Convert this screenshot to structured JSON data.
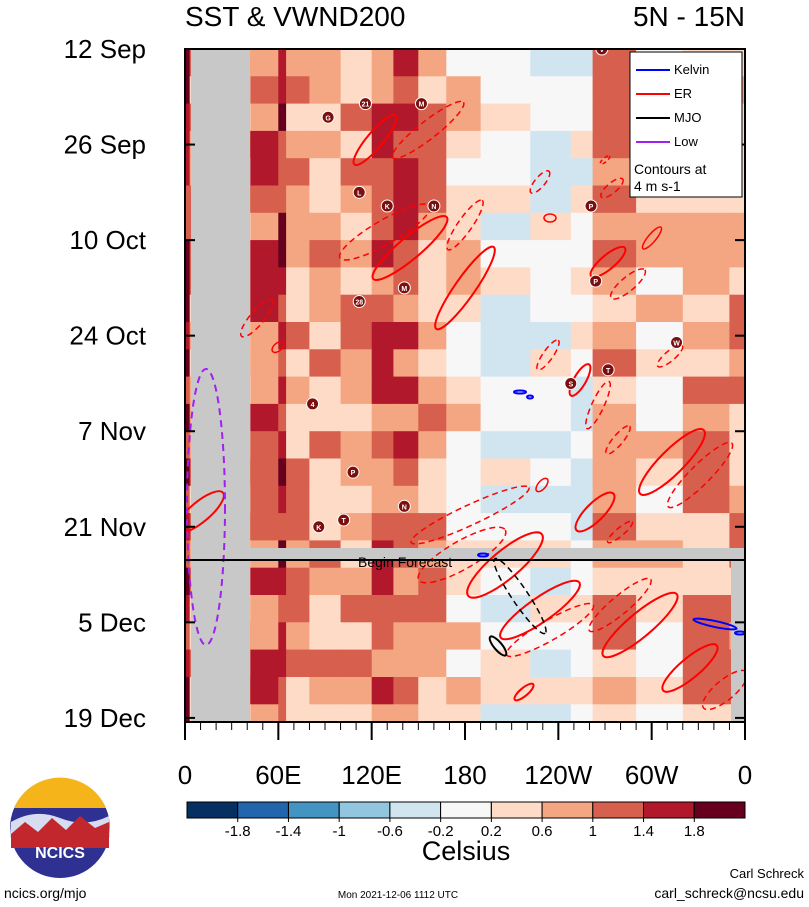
{
  "chart_data": {
    "type": "heatmap",
    "title": "SST & VWND200",
    "region": "5N - 15N",
    "x_ticks": [
      "0",
      "60E",
      "120E",
      "180",
      "120W",
      "60W",
      "0"
    ],
    "y_ticks": [
      "12 Sep",
      "26 Sep",
      "10 Oct",
      "24 Oct",
      "7 Nov",
      "21 Nov",
      "5 Dec",
      "19 Dec"
    ],
    "forecast_label": "Begin Forecast",
    "colorbar": {
      "label": "Celsius",
      "ticks": [
        "-1.8",
        "-1.4",
        "-1",
        "-0.6",
        "-0.2",
        "0.2",
        "0.6",
        "1",
        "1.4",
        "1.8"
      ],
      "colors": [
        "#053061",
        "#2166ac",
        "#4393c3",
        "#92c5de",
        "#d1e5f0",
        "#f7f7f7",
        "#fddbc7",
        "#f4a582",
        "#d6604d",
        "#b2182b",
        "#67001f"
      ]
    },
    "legend": {
      "placement": "top-right",
      "entries": [
        {
          "name": "Kelvin",
          "color": "#0000ff"
        },
        {
          "name": "ER",
          "color": "#ff0000"
        },
        {
          "name": "MJO",
          "color": "#000000"
        },
        {
          "name": "Low",
          "color": "#a020f0"
        }
      ],
      "note_line1": "Contours at",
      "note_line2": "4 m s-1"
    },
    "storm_markers": [
      {
        "label": "G",
        "lon": 92,
        "day": 10
      },
      {
        "label": "21",
        "lon": 116,
        "day": 8
      },
      {
        "label": "M",
        "lon": 152,
        "day": 8
      },
      {
        "label": "L",
        "lon": 112,
        "day": 21
      },
      {
        "label": "K",
        "lon": 130,
        "day": 23
      },
      {
        "label": "N",
        "lon": 160,
        "day": 23
      },
      {
        "label": "P",
        "lon": 261,
        "day": 23
      },
      {
        "label": "M",
        "lon": 141,
        "day": 35
      },
      {
        "label": "28",
        "lon": 112,
        "day": 37
      },
      {
        "label": "P",
        "lon": 264,
        "day": 34
      },
      {
        "label": "W",
        "lon": 316,
        "day": 43
      },
      {
        "label": "T",
        "lon": 272,
        "day": 47
      },
      {
        "label": "S",
        "lon": 248,
        "day": 49
      },
      {
        "label": "4",
        "lon": 82,
        "day": 52
      },
      {
        "label": "P",
        "lon": 108,
        "day": 62
      },
      {
        "label": "N",
        "lon": 141,
        "day": 67
      },
      {
        "label": "T",
        "lon": 102,
        "day": 69
      },
      {
        "label": "K",
        "lon": 86,
        "day": 70
      },
      {
        "label": "V",
        "lon": 268,
        "day": 0
      }
    ]
  },
  "branding": {
    "logo_text": "NCICS",
    "url": "ncics.org/mjo",
    "timestamp": "Mon 2021-12-06 1112 UTC",
    "author": "Carl Schreck",
    "email": "carl_schreck@ncsu.edu"
  }
}
